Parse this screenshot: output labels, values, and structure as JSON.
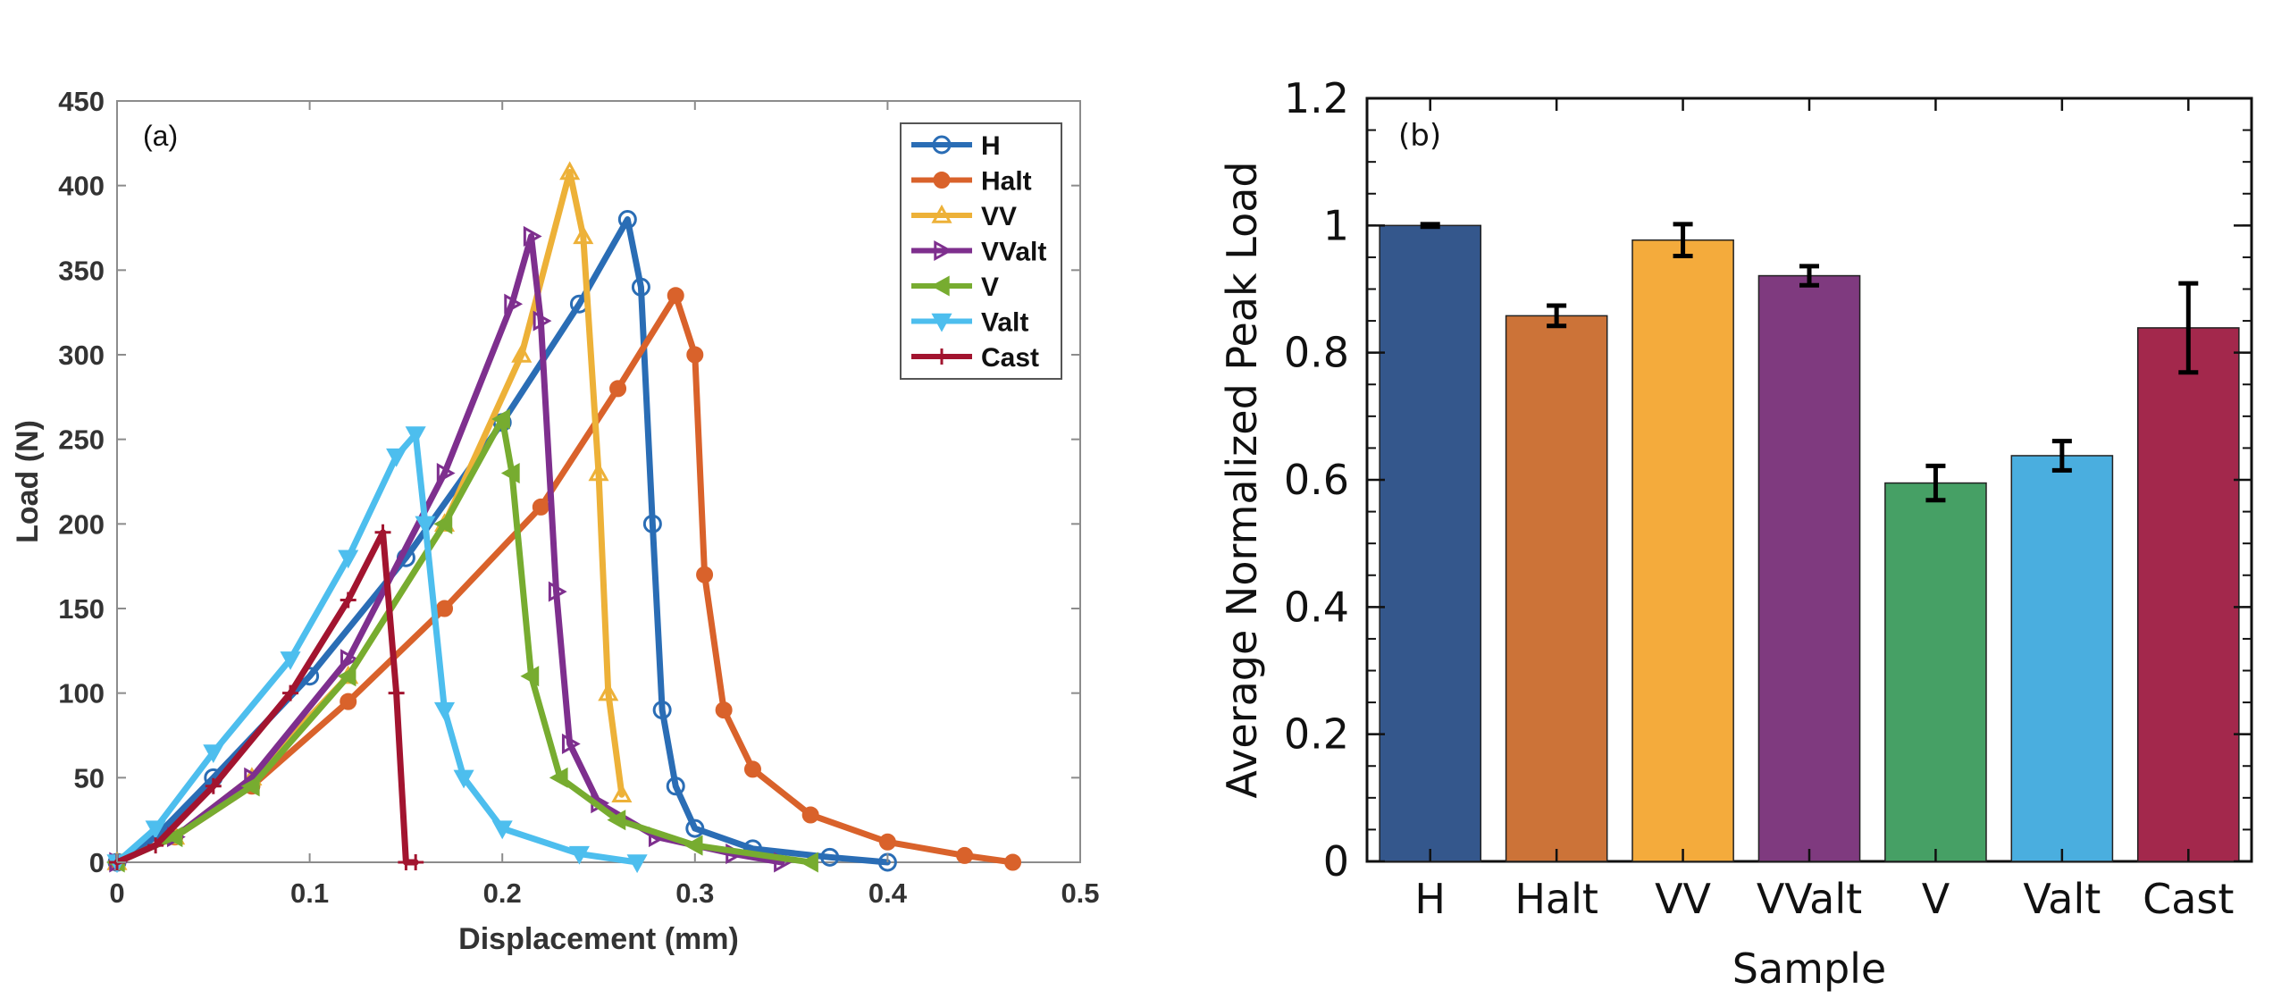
{
  "chart_data": [
    {
      "type": "line",
      "panel_label": "(a)",
      "xlabel": "Displacement (mm)",
      "ylabel": "Load (N)",
      "xlim": [
        0,
        0.5
      ],
      "ylim": [
        0,
        450
      ],
      "xticks": [
        "0",
        "0.1",
        "0.2",
        "0.3",
        "0.4",
        "0.5"
      ],
      "yticks": [
        "0",
        "50",
        "100",
        "150",
        "200",
        "250",
        "300",
        "350",
        "400",
        "450"
      ],
      "legend_position": "top-right",
      "series": [
        {
          "name": "H",
          "color": "#2a6db5",
          "marker": "circle",
          "x": [
            0,
            0.02,
            0.05,
            0.1,
            0.15,
            0.2,
            0.24,
            0.265,
            0.272,
            0.278,
            0.283,
            0.29,
            0.3,
            0.33,
            0.37,
            0.4
          ],
          "y": [
            0,
            15,
            50,
            110,
            180,
            260,
            330,
            380,
            340,
            200,
            90,
            45,
            20,
            8,
            3,
            0
          ]
        },
        {
          "name": "Halt",
          "color": "#d9622b",
          "marker": "filled-circle",
          "x": [
            0,
            0.03,
            0.07,
            0.12,
            0.17,
            0.22,
            0.26,
            0.29,
            0.3,
            0.305,
            0.315,
            0.33,
            0.36,
            0.4,
            0.44,
            0.465
          ],
          "y": [
            0,
            15,
            45,
            95,
            150,
            210,
            280,
            335,
            300,
            170,
            90,
            55,
            28,
            12,
            4,
            0
          ]
        },
        {
          "name": "VV",
          "color": "#edb138",
          "marker": "triangle",
          "x": [
            0,
            0.03,
            0.07,
            0.12,
            0.17,
            0.21,
            0.235,
            0.242,
            0.25,
            0.255,
            0.262
          ],
          "y": [
            0,
            15,
            50,
            110,
            200,
            300,
            408,
            370,
            230,
            100,
            40
          ]
        },
        {
          "name": "VValt",
          "color": "#7e2f8e",
          "marker": "triangle-right",
          "x": [
            0,
            0.03,
            0.07,
            0.12,
            0.17,
            0.205,
            0.215,
            0.22,
            0.228,
            0.235,
            0.25,
            0.28,
            0.32,
            0.345
          ],
          "y": [
            0,
            15,
            50,
            120,
            230,
            330,
            370,
            320,
            160,
            70,
            35,
            15,
            5,
            0
          ]
        },
        {
          "name": "V",
          "color": "#77ac30",
          "marker": "triangle-left",
          "x": [
            0,
            0.03,
            0.07,
            0.12,
            0.17,
            0.2,
            0.205,
            0.215,
            0.23,
            0.26,
            0.3,
            0.36
          ],
          "y": [
            0,
            15,
            45,
            110,
            200,
            262,
            230,
            110,
            50,
            25,
            10,
            0
          ]
        },
        {
          "name": "Valt",
          "color": "#4dbeee",
          "marker": "triangle-down",
          "x": [
            0,
            0.02,
            0.05,
            0.09,
            0.12,
            0.145,
            0.155,
            0.16,
            0.17,
            0.18,
            0.2,
            0.24,
            0.27
          ],
          "y": [
            0,
            20,
            65,
            120,
            180,
            240,
            253,
            200,
            90,
            50,
            20,
            5,
            0
          ]
        },
        {
          "name": "Cast",
          "color": "#a2142f",
          "marker": "plus",
          "x": [
            0,
            0.02,
            0.05,
            0.09,
            0.12,
            0.138,
            0.145,
            0.15,
            0.155
          ],
          "y": [
            0,
            10,
            45,
            100,
            155,
            195,
            100,
            0,
            0
          ]
        }
      ]
    },
    {
      "type": "bar",
      "panel_label": "(b)",
      "xlabel": "Sample",
      "ylabel": "Average Normalized Peak Load",
      "ylim": [
        0,
        1.2
      ],
      "yticks": [
        "0",
        "0.2",
        "0.4",
        "0.6",
        "0.8",
        "1",
        "1.2"
      ],
      "categories": [
        "H",
        "Halt",
        "VV",
        "VValt",
        "V",
        "Valt",
        "Cast"
      ],
      "values": [
        1.0,
        0.858,
        0.977,
        0.921,
        0.595,
        0.638,
        0.839
      ],
      "errors": [
        0.002,
        0.016,
        0.025,
        0.015,
        0.027,
        0.023,
        0.07
      ],
      "colors": [
        "#34578c",
        "#cc7338",
        "#f4ab3c",
        "#7f3a7f",
        "#46a065",
        "#4aaedf",
        "#a3284c"
      ]
    }
  ]
}
